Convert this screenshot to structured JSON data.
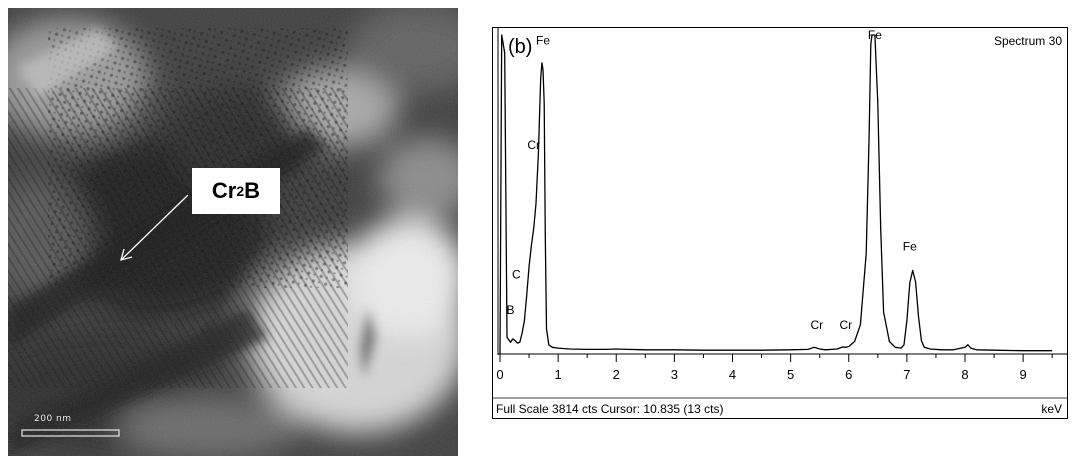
{
  "tem_panel": {
    "label": "Cr2B",
    "label_main": "Cr",
    "label_sub": "2",
    "label_end": "B",
    "scale_bar": "200 nm"
  },
  "chart_data": {
    "type": "line",
    "panel_label": "(b)",
    "title": "Spectrum 30",
    "xlabel": "keV",
    "footer": "Full Scale 3814 cts Cursor: 10.835  (13 cts)",
    "xlim": [
      0,
      9.6
    ],
    "x_ticks": [
      "0",
      "1",
      "2",
      "3",
      "4",
      "5",
      "6",
      "7",
      "8",
      "9"
    ],
    "ylim": [
      0,
      3814
    ],
    "grid": false,
    "series": [
      {
        "x": [
          0.0,
          0.03,
          0.08,
          0.12,
          0.18,
          0.22,
          0.26,
          0.3,
          0.34,
          0.38,
          0.42,
          0.46,
          0.5,
          0.54,
          0.58,
          0.62,
          0.66,
          0.7,
          0.72,
          0.74,
          0.76,
          0.78,
          0.8,
          0.84,
          0.9,
          1.0,
          1.2,
          1.5,
          1.8,
          2.0,
          2.2,
          2.5,
          3.0,
          3.5,
          4.0,
          4.5,
          5.0,
          5.3,
          5.4,
          5.5,
          5.6,
          5.8,
          5.9,
          5.95,
          6.0,
          6.1,
          6.2,
          6.3,
          6.35,
          6.38,
          6.4,
          6.42,
          6.45,
          6.5,
          6.55,
          6.6,
          6.7,
          6.8,
          6.9,
          6.95,
          7.0,
          7.05,
          7.1,
          7.15,
          7.2,
          7.25,
          7.3,
          7.4,
          7.6,
          7.8,
          8.0,
          8.05,
          8.1,
          8.2,
          8.5,
          9.0,
          9.5
        ],
        "y": [
          0,
          3814,
          3600,
          200,
          140,
          180,
          160,
          130,
          140,
          250,
          400,
          700,
          1050,
          1300,
          1500,
          1800,
          2400,
          3300,
          3480,
          3400,
          3000,
          1400,
          300,
          110,
          80,
          70,
          60,
          55,
          55,
          60,
          55,
          50,
          50,
          45,
          45,
          45,
          50,
          55,
          80,
          60,
          50,
          60,
          85,
          80,
          90,
          150,
          350,
          1200,
          2600,
          3700,
          3814,
          3814,
          3814,
          3000,
          1500,
          500,
          150,
          80,
          70,
          110,
          400,
          850,
          1000,
          860,
          450,
          160,
          80,
          60,
          50,
          50,
          80,
          110,
          70,
          50,
          45,
          40,
          40
        ]
      }
    ],
    "annotations": [
      {
        "text": "B",
        "x": 0.18,
        "y": 480
      },
      {
        "text": "C",
        "x": 0.28,
        "y": 900
      },
      {
        "text": "Cr",
        "x": 0.58,
        "y": 2450
      },
      {
        "text": "Fe",
        "x": 0.74,
        "y": 3700
      },
      {
        "text": "Cr",
        "x": 5.45,
        "y": 300
      },
      {
        "text": "Cr",
        "x": 5.95,
        "y": 300
      },
      {
        "text": "Fe",
        "x": 6.45,
        "y": 4120
      },
      {
        "text": "Fe",
        "x": 7.05,
        "y": 1240
      }
    ]
  }
}
